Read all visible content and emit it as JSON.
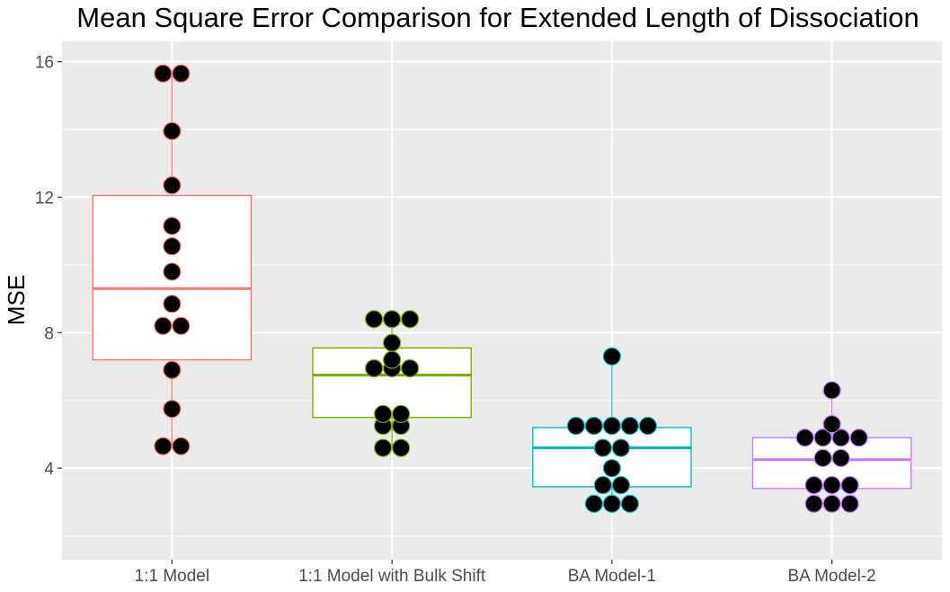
{
  "chart_data": {
    "type": "box",
    "title": "Mean Square Error Comparison for Extended Length of Dissociation",
    "xlabel": "",
    "ylabel": "MSE",
    "ylim": [
      1.3,
      16.6
    ],
    "yticks": [
      4,
      8,
      12,
      16
    ],
    "grid": true,
    "legend": "none",
    "categories": [
      "1:1 Model",
      "1:1 Model with Bulk Shift",
      "BA Model-1",
      "BA Model-2"
    ],
    "series": [
      {
        "category": "1:1 Model",
        "color": "#F8766D",
        "box": {
          "whisker_low": 4.65,
          "q1": 7.2,
          "median": 9.3,
          "q3": 12.05,
          "whisker_high": 15.65
        },
        "points": [
          4.65,
          4.65,
          5.75,
          6.9,
          8.2,
          8.2,
          8.85,
          9.8,
          10.55,
          11.15,
          12.35,
          13.95,
          15.65,
          15.65
        ]
      },
      {
        "category": "1:1 Model with Bulk Shift",
        "color": "#7CAE00",
        "box": {
          "whisker_low": 4.6,
          "q1": 5.5,
          "median": 6.75,
          "q3": 7.55,
          "whisker_high": 8.4
        },
        "points": [
          4.6,
          4.6,
          5.25,
          5.25,
          5.6,
          5.6,
          6.95,
          6.95,
          6.95,
          7.2,
          7.7,
          8.4,
          8.4,
          8.4
        ]
      },
      {
        "category": "BA Model-1",
        "color": "#00BFC4",
        "box": {
          "whisker_low": 2.95,
          "q1": 3.45,
          "median": 4.6,
          "q3": 5.2,
          "whisker_high": 7.3
        },
        "points": [
          2.95,
          2.95,
          2.95,
          3.5,
          3.5,
          4.0,
          4.6,
          4.6,
          5.25,
          5.25,
          5.25,
          5.25,
          5.25,
          7.3
        ]
      },
      {
        "category": "BA Model-2",
        "color": "#C77CFF",
        "box": {
          "whisker_low": 2.95,
          "q1": 3.4,
          "median": 4.25,
          "q3": 4.9,
          "whisker_high": 6.3
        },
        "points": [
          2.95,
          2.95,
          2.95,
          3.5,
          3.5,
          3.5,
          4.3,
          4.3,
          4.9,
          4.9,
          4.9,
          4.9,
          5.3,
          6.3
        ]
      }
    ]
  }
}
